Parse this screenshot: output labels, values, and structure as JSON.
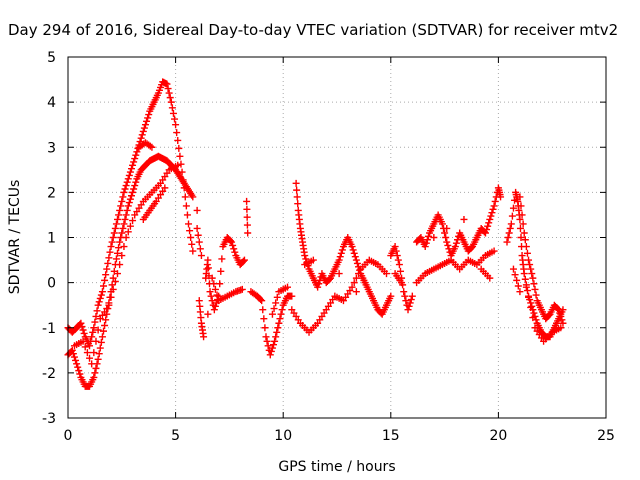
{
  "chart_data": {
    "type": "scatter",
    "title": "Day 294 of 2016, Sidereal Day-to-day VTEC variation (SDTVAR) for receiver mtv2",
    "xlabel": "GPS time / hours",
    "ylabel": "SDTVAR / TECUs",
    "xlim": [
      0,
      25
    ],
    "ylim": [
      -3,
      5
    ],
    "xticks": [
      "0",
      "5",
      "10",
      "15",
      "20",
      "25"
    ],
    "yticks": [
      "-3",
      "-2",
      "-1",
      "0",
      "1",
      "2",
      "3",
      "4",
      "5"
    ],
    "grid": true,
    "legend": "none",
    "marker": "plus",
    "color": "#ff0000",
    "series": [
      {
        "name": "",
        "values": [
          [
            0.0,
            -1.6
          ],
          [
            0.2,
            -1.5
          ],
          [
            0.4,
            -1.8
          ],
          [
            0.6,
            -2.1
          ],
          [
            0.8,
            -2.3
          ],
          [
            1.0,
            -2.3
          ],
          [
            1.2,
            -2.1
          ],
          [
            1.4,
            -1.7
          ],
          [
            1.6,
            -1.2
          ],
          [
            1.8,
            -0.7
          ],
          [
            2.0,
            -0.2
          ],
          [
            2.2,
            0.4
          ],
          [
            2.4,
            0.9
          ],
          [
            2.6,
            1.3
          ],
          [
            2.8,
            1.7
          ],
          [
            3.0,
            2.0
          ],
          [
            3.2,
            2.3
          ],
          [
            3.4,
            2.5
          ],
          [
            3.6,
            2.6
          ],
          [
            3.8,
            2.7
          ],
          [
            4.0,
            2.75
          ],
          [
            4.2,
            2.8
          ],
          [
            4.4,
            2.75
          ],
          [
            4.6,
            2.7
          ],
          [
            4.8,
            2.6
          ],
          [
            5.0,
            2.5
          ],
          [
            5.2,
            2.35
          ],
          [
            5.4,
            2.2
          ],
          [
            5.6,
            2.05
          ],
          [
            5.8,
            1.9
          ]
        ]
      },
      {
        "name": "",
        "values": [
          [
            0.0,
            -1.0
          ],
          [
            0.2,
            -1.1
          ],
          [
            0.4,
            -1.0
          ],
          [
            0.6,
            -0.9
          ],
          [
            0.8,
            -1.2
          ],
          [
            1.0,
            -1.4
          ],
          [
            1.2,
            -1.0
          ],
          [
            1.4,
            -0.5
          ],
          [
            1.6,
            -0.2
          ],
          [
            1.8,
            0.3
          ],
          [
            2.0,
            0.8
          ],
          [
            2.2,
            1.2
          ],
          [
            2.4,
            1.6
          ],
          [
            2.6,
            2.0
          ],
          [
            2.8,
            2.3
          ],
          [
            3.0,
            2.6
          ],
          [
            3.2,
            2.9
          ],
          [
            3.4,
            3.2
          ],
          [
            3.6,
            3.5
          ],
          [
            3.8,
            3.8
          ],
          [
            4.0,
            4.0
          ],
          [
            4.2,
            4.2
          ],
          [
            4.4,
            4.45
          ],
          [
            4.6,
            4.4
          ],
          [
            4.8,
            4.0
          ],
          [
            5.0,
            3.5
          ],
          [
            5.2,
            2.8
          ],
          [
            5.4,
            2.1
          ],
          [
            5.6,
            1.3
          ],
          [
            5.8,
            0.7
          ]
        ]
      },
      {
        "name": "",
        "values": [
          [
            0.3,
            -1.4
          ],
          [
            0.7,
            -1.3
          ],
          [
            1.1,
            -1.8
          ],
          [
            1.5,
            -0.8
          ],
          [
            1.9,
            -0.5
          ],
          [
            2.3,
            0.2
          ],
          [
            2.7,
            1.0
          ],
          [
            3.1,
            1.5
          ],
          [
            3.5,
            1.8
          ],
          [
            3.9,
            2.0
          ],
          [
            4.3,
            2.2
          ],
          [
            4.7,
            2.5
          ],
          [
            5.1,
            2.6
          ],
          [
            3.5,
            1.4
          ],
          [
            3.8,
            1.6
          ],
          [
            4.1,
            1.8
          ],
          [
            4.5,
            2.1
          ],
          [
            3.3,
            3.0
          ],
          [
            3.6,
            3.1
          ],
          [
            3.9,
            3.0
          ]
        ]
      },
      {
        "name": "",
        "values": [
          [
            6.0,
            1.6
          ],
          [
            6.1,
            -0.4
          ],
          [
            6.2,
            -0.9
          ],
          [
            6.3,
            -1.2
          ],
          [
            6.4,
            0.1
          ],
          [
            6.5,
            0.5
          ],
          [
            6.6,
            -0.2
          ],
          [
            6.8,
            -0.6
          ],
          [
            7.0,
            -0.3
          ],
          [
            7.2,
            0.8
          ],
          [
            7.4,
            1.0
          ],
          [
            7.6,
            0.9
          ],
          [
            7.8,
            0.6
          ],
          [
            8.0,
            0.4
          ],
          [
            8.2,
            0.5
          ],
          [
            8.3,
            1.8
          ],
          [
            8.35,
            1.1
          ],
          [
            6.7,
            0.1
          ],
          [
            7.0,
            -0.4
          ],
          [
            7.4,
            -0.3
          ],
          [
            7.8,
            -0.2
          ],
          [
            8.1,
            -0.15
          ],
          [
            6.0,
            1.2
          ],
          [
            6.2,
            0.6
          ],
          [
            6.5,
            -0.7
          ]
        ]
      },
      {
        "name": "",
        "values": [
          [
            8.5,
            -0.2
          ],
          [
            8.8,
            -0.3
          ],
          [
            9.0,
            -0.4
          ],
          [
            9.2,
            -1.2
          ],
          [
            9.4,
            -1.6
          ],
          [
            9.6,
            -1.3
          ],
          [
            9.8,
            -0.9
          ],
          [
            10.0,
            -0.5
          ],
          [
            10.2,
            -0.3
          ],
          [
            10.4,
            -0.3
          ],
          [
            10.6,
            2.2
          ],
          [
            10.7,
            1.6
          ],
          [
            10.8,
            1.2
          ],
          [
            10.9,
            0.9
          ],
          [
            11.0,
            0.6
          ],
          [
            11.2,
            0.3
          ],
          [
            11.4,
            0.1
          ],
          [
            11.6,
            -0.1
          ],
          [
            11.8,
            0.2
          ],
          [
            12.0,
            0.0
          ],
          [
            12.2,
            0.1
          ],
          [
            12.4,
            0.3
          ],
          [
            12.6,
            0.5
          ],
          [
            12.8,
            0.8
          ],
          [
            13.0,
            1.0
          ],
          [
            13.2,
            0.8
          ],
          [
            13.4,
            0.5
          ],
          [
            13.6,
            0.2
          ],
          [
            13.8,
            0.0
          ],
          [
            14.0,
            -0.2
          ],
          [
            14.2,
            -0.4
          ],
          [
            14.4,
            -0.6
          ],
          [
            14.6,
            -0.7
          ],
          [
            14.8,
            -0.5
          ],
          [
            15.0,
            -0.3
          ],
          [
            10.4,
            -0.6
          ],
          [
            10.8,
            -0.9
          ],
          [
            11.2,
            -1.1
          ],
          [
            11.6,
            -0.9
          ],
          [
            12.0,
            -0.6
          ],
          [
            12.4,
            -0.3
          ],
          [
            12.8,
            -0.4
          ],
          [
            13.2,
            -0.1
          ],
          [
            13.6,
            0.3
          ],
          [
            14.0,
            0.5
          ],
          [
            14.4,
            0.4
          ],
          [
            14.8,
            0.2
          ],
          [
            11.0,
            0.4
          ],
          [
            11.4,
            0.5
          ],
          [
            12.6,
            0.2
          ],
          [
            13.4,
            -0.2
          ],
          [
            10.2,
            -0.1
          ],
          [
            9.8,
            -0.2
          ],
          [
            9.5,
            -0.7
          ]
        ]
      },
      {
        "name": "",
        "values": [
          [
            15.0,
            0.6
          ],
          [
            15.2,
            0.8
          ],
          [
            15.4,
            0.4
          ],
          [
            15.6,
            -0.2
          ],
          [
            15.8,
            -0.6
          ],
          [
            16.0,
            -0.3
          ],
          [
            16.2,
            0.9
          ],
          [
            16.4,
            1.0
          ],
          [
            16.6,
            0.8
          ],
          [
            16.8,
            1.1
          ],
          [
            17.0,
            1.3
          ],
          [
            17.2,
            1.5
          ],
          [
            17.4,
            1.3
          ],
          [
            17.6,
            0.9
          ],
          [
            17.8,
            0.6
          ],
          [
            18.0,
            0.8
          ],
          [
            18.2,
            1.1
          ],
          [
            18.4,
            0.9
          ],
          [
            18.6,
            0.7
          ],
          [
            18.8,
            0.8
          ],
          [
            19.0,
            1.0
          ],
          [
            19.2,
            1.2
          ],
          [
            19.4,
            1.1
          ],
          [
            19.6,
            1.4
          ],
          [
            19.8,
            1.7
          ],
          [
            20.0,
            2.1
          ],
          [
            20.1,
            1.9
          ],
          [
            16.2,
            0.0
          ],
          [
            16.6,
            0.2
          ],
          [
            17.0,
            0.3
          ],
          [
            17.4,
            0.4
          ],
          [
            17.8,
            0.5
          ],
          [
            18.2,
            0.3
          ],
          [
            18.6,
            0.5
          ],
          [
            19.0,
            0.4
          ],
          [
            19.4,
            0.6
          ],
          [
            19.8,
            0.7
          ],
          [
            17.0,
            1.0
          ],
          [
            17.6,
            1.2
          ],
          [
            18.4,
            1.4
          ],
          [
            19.2,
            0.3
          ],
          [
            19.6,
            0.1
          ],
          [
            15.2,
            0.2
          ],
          [
            15.5,
            0.0
          ]
        ]
      },
      {
        "name": "",
        "values": [
          [
            20.4,
            0.9
          ],
          [
            20.6,
            1.3
          ],
          [
            20.8,
            2.0
          ],
          [
            20.9,
            1.8
          ],
          [
            21.0,
            1.4
          ],
          [
            21.1,
            0.6
          ],
          [
            21.2,
            0.2
          ],
          [
            21.4,
            -0.3
          ],
          [
            21.6,
            -0.6
          ],
          [
            21.8,
            -0.9
          ],
          [
            22.0,
            -1.1
          ],
          [
            22.2,
            -1.2
          ],
          [
            22.4,
            -1.2
          ],
          [
            22.6,
            -1.0
          ],
          [
            22.8,
            -0.8
          ],
          [
            23.0,
            -0.6
          ],
          [
            21.0,
            1.9
          ],
          [
            21.2,
            1.1
          ],
          [
            21.4,
            0.5
          ],
          [
            21.6,
            0.1
          ],
          [
            21.8,
            -0.4
          ],
          [
            22.0,
            -0.6
          ],
          [
            22.2,
            -0.8
          ],
          [
            22.4,
            -0.7
          ],
          [
            22.6,
            -0.5
          ],
          [
            22.8,
            -0.6
          ],
          [
            23.0,
            -0.9
          ],
          [
            21.3,
            -0.1
          ],
          [
            21.7,
            -1.0
          ],
          [
            22.1,
            -1.3
          ],
          [
            22.5,
            -1.1
          ],
          [
            22.9,
            -1.0
          ],
          [
            20.7,
            0.3
          ],
          [
            21.0,
            -0.2
          ]
        ]
      }
    ]
  }
}
